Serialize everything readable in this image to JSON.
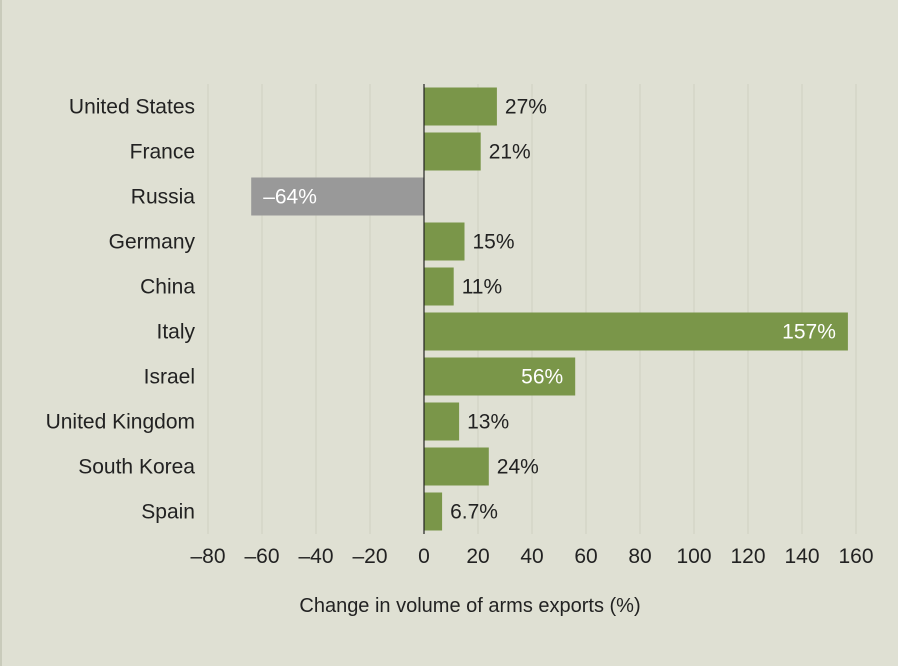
{
  "chart_data": {
    "type": "bar",
    "orientation": "horizontal",
    "categories": [
      "United States",
      "France",
      "Russia",
      "Germany",
      "China",
      "Italy",
      "Israel",
      "United Kingdom",
      "South Korea",
      "Spain"
    ],
    "values": [
      27,
      21,
      -64,
      15,
      11,
      157,
      56,
      13,
      24,
      6.7
    ],
    "data_labels": [
      "27%",
      "21%",
      "–64%",
      "15%",
      "11%",
      "157%",
      "56%",
      "13%",
      "24%",
      "6.7%"
    ],
    "xlabel": "Change in volume of arms exports (%)",
    "ylabel": "",
    "xlim": [
      -80,
      160
    ],
    "xticks": [
      -80,
      -60,
      -40,
      -20,
      0,
      20,
      40,
      60,
      80,
      100,
      120,
      140,
      160
    ],
    "xtick_labels": [
      "–80",
      "–60",
      "–40",
      "–20",
      "0",
      "20",
      "40",
      "60",
      "80",
      "100",
      "120",
      "140",
      "160"
    ],
    "grid": "vertical",
    "colors": {
      "positive": "#7a9649",
      "negative": "#999999",
      "background": "#dfe0d3",
      "grid": "#cfd1c2"
    }
  }
}
